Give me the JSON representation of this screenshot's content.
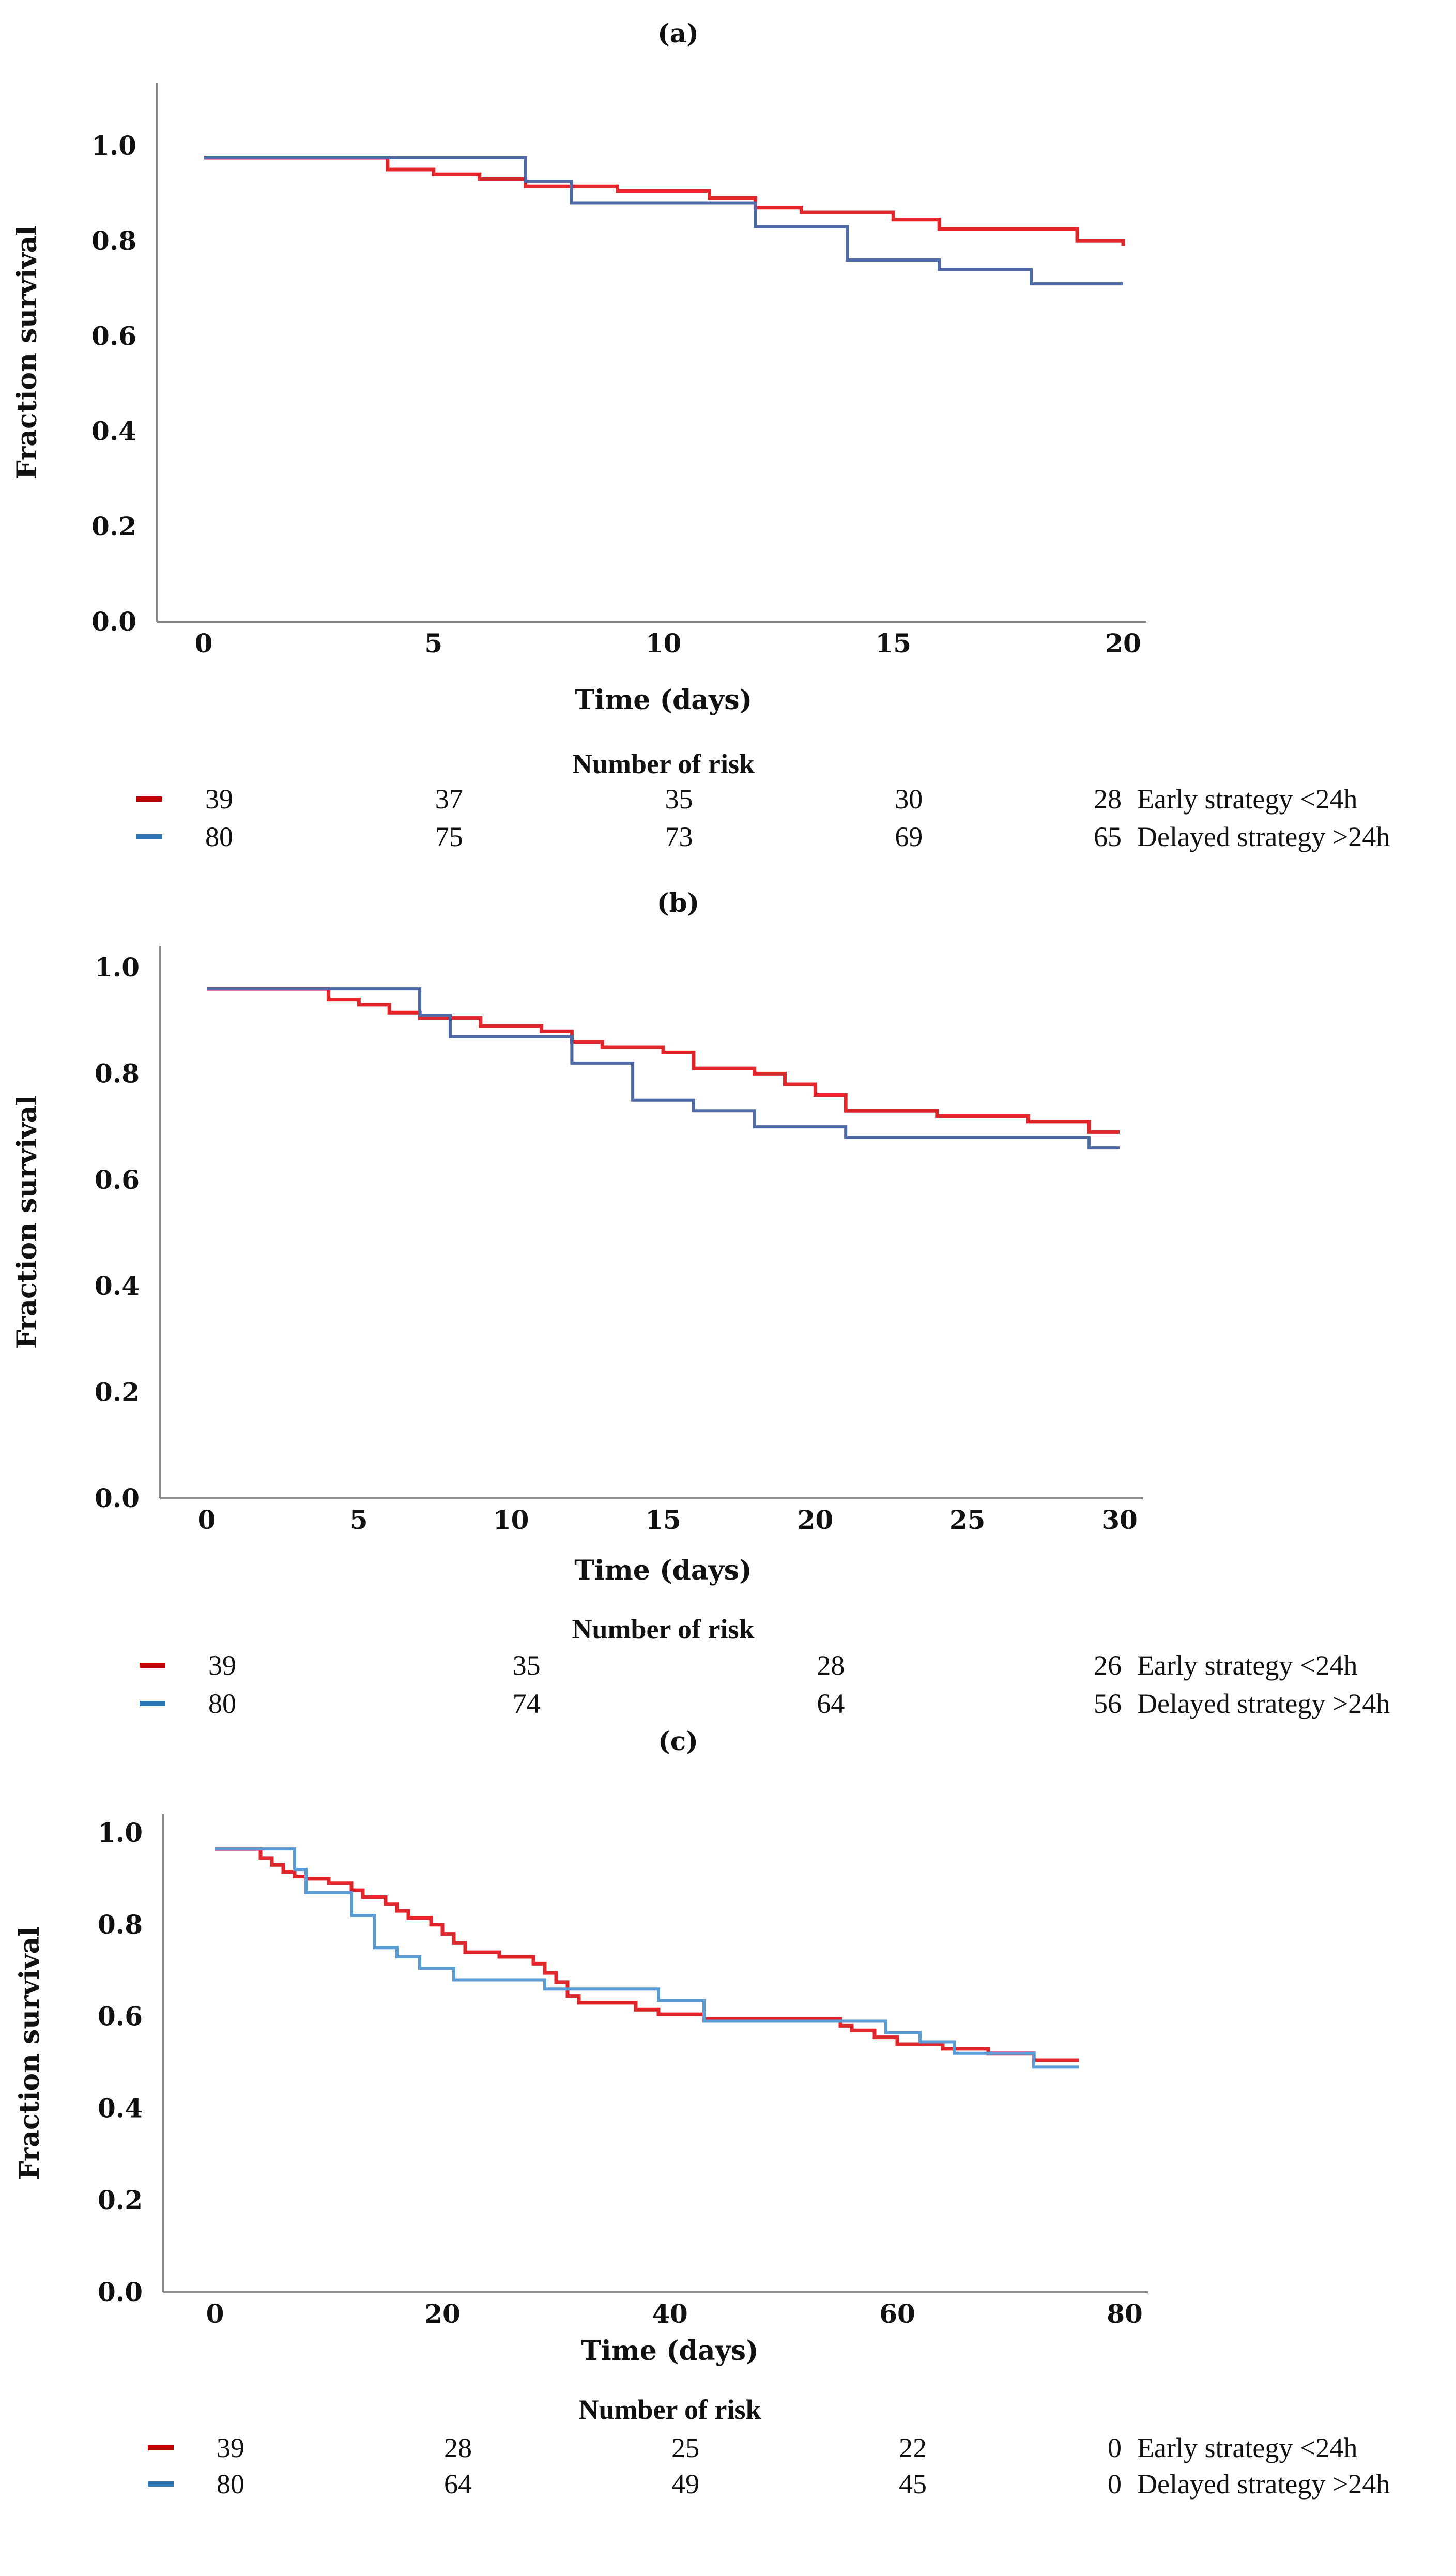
{
  "chart_data": [
    {
      "panel": "(a)",
      "type": "line",
      "xlabel": "Time (days)",
      "ylabel": "Fraction survival",
      "xlim": [
        0,
        20
      ],
      "ylim": [
        0,
        1
      ],
      "xticks": [
        0,
        5,
        10,
        15,
        20
      ],
      "xtick_labels": [
        "0",
        "5",
        "10",
        "15",
        "20"
      ],
      "yticks": [
        0,
        0.2,
        0.4,
        0.6,
        0.8,
        1.0
      ],
      "ytick_labels": [
        "0.0",
        "0.2",
        "0.4",
        "0.6",
        "0.8",
        "1.0"
      ],
      "series": [
        {
          "name": "Early strategy <24h",
          "color": "#e0252b",
          "end": 20,
          "steps": [
            [
              0,
              0.975
            ],
            [
              4,
              0.95
            ],
            [
              5,
              0.94
            ],
            [
              6,
              0.93
            ],
            [
              7,
              0.915
            ],
            [
              9,
              0.905
            ],
            [
              11,
              0.89
            ],
            [
              12,
              0.87
            ],
            [
              13,
              0.86
            ],
            [
              15,
              0.845
            ],
            [
              16,
              0.825
            ],
            [
              19,
              0.8
            ],
            [
              20,
              0.79
            ]
          ]
        },
        {
          "name": "Delayed strategy >24h",
          "color": "#4d6aa6",
          "end": 20,
          "steps": [
            [
              0,
              0.975
            ],
            [
              7,
              0.925
            ],
            [
              8,
              0.88
            ],
            [
              12,
              0.83
            ],
            [
              14,
              0.76
            ],
            [
              16,
              0.74
            ],
            [
              18,
              0.71
            ]
          ]
        }
      ],
      "risk": {
        "title": "Number of risk",
        "times": [
          0,
          5,
          10,
          15,
          20
        ],
        "rows": [
          {
            "label": "Early strategy <24h",
            "color": "#c00000",
            "values": [
              "39",
              "37",
              "35",
              "30",
              "28"
            ]
          },
          {
            "label": "Delayed strategy >24h",
            "color": "#2e75b6",
            "values": [
              "80",
              "75",
              "73",
              "69",
              "65"
            ]
          }
        ]
      }
    },
    {
      "panel": "(b)",
      "type": "line",
      "xlabel": "Time (days)",
      "ylabel": "Fraction survival",
      "xlim": [
        0,
        30
      ],
      "ylim": [
        0,
        1
      ],
      "xticks": [
        0,
        5,
        10,
        15,
        20,
        25,
        30
      ],
      "xtick_labels": [
        "0",
        "5",
        "10",
        "15",
        "20",
        "25",
        "30"
      ],
      "yticks": [
        0,
        0.2,
        0.4,
        0.6,
        0.8,
        1.0
      ],
      "ytick_labels": [
        "0.0",
        "0.2",
        "0.4",
        "0.6",
        "0.8",
        "1.0"
      ],
      "series": [
        {
          "name": "Early strategy <24h",
          "color": "#e0252b",
          "end": 30,
          "steps": [
            [
              0,
              0.96
            ],
            [
              4,
              0.94
            ],
            [
              5,
              0.93
            ],
            [
              6,
              0.915
            ],
            [
              7,
              0.905
            ],
            [
              9,
              0.89
            ],
            [
              11,
              0.88
            ],
            [
              12,
              0.86
            ],
            [
              13,
              0.85
            ],
            [
              15,
              0.84
            ],
            [
              16,
              0.81
            ],
            [
              18,
              0.8
            ],
            [
              19,
              0.78
            ],
            [
              20,
              0.76
            ],
            [
              21,
              0.73
            ],
            [
              24,
              0.72
            ],
            [
              27,
              0.71
            ],
            [
              29,
              0.69
            ]
          ]
        },
        {
          "name": "Delayed strategy >24h",
          "color": "#4d6aa6",
          "end": 30,
          "steps": [
            [
              0,
              0.96
            ],
            [
              7,
              0.91
            ],
            [
              8,
              0.87
            ],
            [
              12,
              0.82
            ],
            [
              14,
              0.75
            ],
            [
              16,
              0.73
            ],
            [
              18,
              0.7
            ],
            [
              21,
              0.68
            ],
            [
              29,
              0.66
            ]
          ]
        }
      ],
      "risk": {
        "title": "Number of risk",
        "times": [
          0,
          10,
          20,
          30
        ],
        "rows": [
          {
            "label": "Early strategy <24h",
            "color": "#c00000",
            "values": [
              "39",
              "35",
              "28",
              "26"
            ]
          },
          {
            "label": "Delayed strategy >24h",
            "color": "#2e75b6",
            "values": [
              "80",
              "74",
              "64",
              "56"
            ]
          }
        ]
      }
    },
    {
      "panel": "(c)",
      "type": "line",
      "xlabel": "Time (days)",
      "ylabel": "Fraction survival",
      "xlim": [
        0,
        80
      ],
      "ylim": [
        0,
        1
      ],
      "xticks": [
        0,
        20,
        40,
        60,
        80
      ],
      "xtick_labels": [
        "0",
        "20",
        "40",
        "60",
        "80"
      ],
      "yticks": [
        0,
        0.2,
        0.4,
        0.6,
        0.8,
        1.0
      ],
      "ytick_labels": [
        "0.0",
        "0.2",
        "0.4",
        "0.6",
        "0.8",
        "1.0"
      ],
      "series": [
        {
          "name": "Early strategy <24h",
          "color": "#e0252b",
          "end": 76,
          "steps": [
            [
              0,
              0.965
            ],
            [
              4,
              0.945
            ],
            [
              5,
              0.93
            ],
            [
              6,
              0.915
            ],
            [
              7,
              0.905
            ],
            [
              8,
              0.9
            ],
            [
              10,
              0.89
            ],
            [
              12,
              0.875
            ],
            [
              13,
              0.86
            ],
            [
              15,
              0.845
            ],
            [
              16,
              0.83
            ],
            [
              17,
              0.815
            ],
            [
              19,
              0.8
            ],
            [
              20,
              0.78
            ],
            [
              21,
              0.76
            ],
            [
              22,
              0.74
            ],
            [
              25,
              0.73
            ],
            [
              28,
              0.715
            ],
            [
              29,
              0.695
            ],
            [
              30,
              0.675
            ],
            [
              31,
              0.645
            ],
            [
              32,
              0.63
            ],
            [
              37,
              0.615
            ],
            [
              39,
              0.605
            ],
            [
              43,
              0.595
            ],
            [
              55,
              0.58
            ],
            [
              56,
              0.57
            ],
            [
              58,
              0.555
            ],
            [
              60,
              0.54
            ],
            [
              64,
              0.53
            ],
            [
              68,
              0.52
            ],
            [
              72,
              0.505
            ]
          ]
        },
        {
          "name": "Delayed strategy >24h",
          "color": "#5b9bd5",
          "end": 76,
          "steps": [
            [
              0,
              0.965
            ],
            [
              7,
              0.92
            ],
            [
              8,
              0.87
            ],
            [
              12,
              0.82
            ],
            [
              14,
              0.75
            ],
            [
              16,
              0.73
            ],
            [
              18,
              0.705
            ],
            [
              21,
              0.68
            ],
            [
              29,
              0.66
            ],
            [
              39,
              0.635
            ],
            [
              43,
              0.59
            ],
            [
              59,
              0.565
            ],
            [
              62,
              0.545
            ],
            [
              65,
              0.52
            ],
            [
              72,
              0.49
            ]
          ]
        }
      ],
      "risk": {
        "title": "Number of risk",
        "times": [
          0,
          20,
          40,
          60,
          80
        ],
        "rows": [
          {
            "label": "Early strategy <24h",
            "color": "#c00000",
            "values": [
              "39",
              "28",
              "25",
              "22",
              "0"
            ]
          },
          {
            "label": "Delayed strategy >24h",
            "color": "#2e75b6",
            "values": [
              "80",
              "64",
              "49",
              "45",
              "0"
            ]
          }
        ]
      }
    }
  ]
}
